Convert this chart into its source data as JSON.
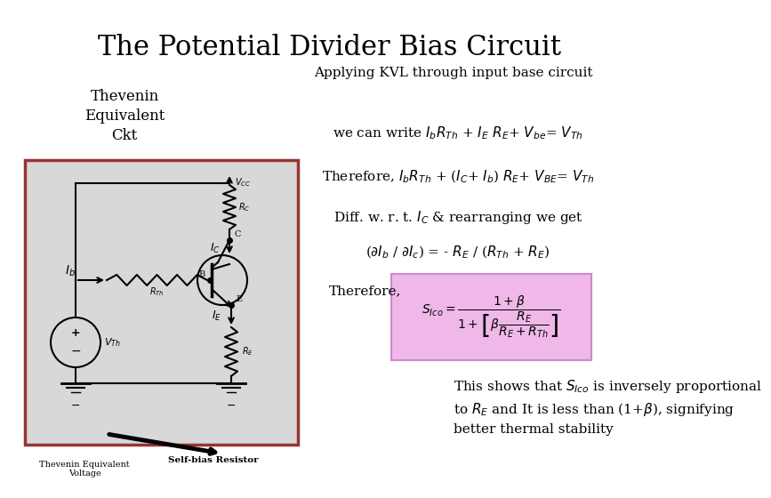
{
  "title": "The Potential Divider Bias Circuit",
  "background_color": "#ffffff",
  "title_fontsize": 22,
  "title_font": "serif",
  "circuit_box_color": "#d8d8d8",
  "circuit_box_border": "#993333",
  "applying_text": "Applying KVL through input base circuit",
  "thevenin_label": "Thevenin\nEquivalent\nCkt",
  "eq1": "we can write $I_bR_{Th}$ + $I_E$ $R_E$+ $V_{be}$= $V_{Th}$",
  "eq2": "Therefore, $I_bR_{Th}$ + ($I_C$+ $I_b$) $R_E$+ $V_{BE}$= $V_{Th}$",
  "eq3": "Diff. w. r. t. $I_C$ & rearranging we get",
  "eq4": "($\\partial I_b$ / $\\partial I_c$) = - $R_E$ / ($R_{Th}$ + $R_E$)",
  "therefore_text": "Therefore,",
  "formula_text": "$S_{Ico}=\\dfrac{1+\\beta}{1+\\left[\\beta\\dfrac{R_E}{R_E+R_{Th}}\\right]}$",
  "bottom_text": "This shows that $S_{Ico}$ is inversely proportional\nto $R_E$ and It is less than (1+$\\beta$), signifying\nbetter thermal stability",
  "formula_box_facecolor": "#f0b8e8",
  "formula_box_edgecolor": "#cc88cc",
  "thevenin_voltage_label": "Thevenin Equivalent\nVoltage",
  "self_bias_label": "Self-bias Resistor"
}
